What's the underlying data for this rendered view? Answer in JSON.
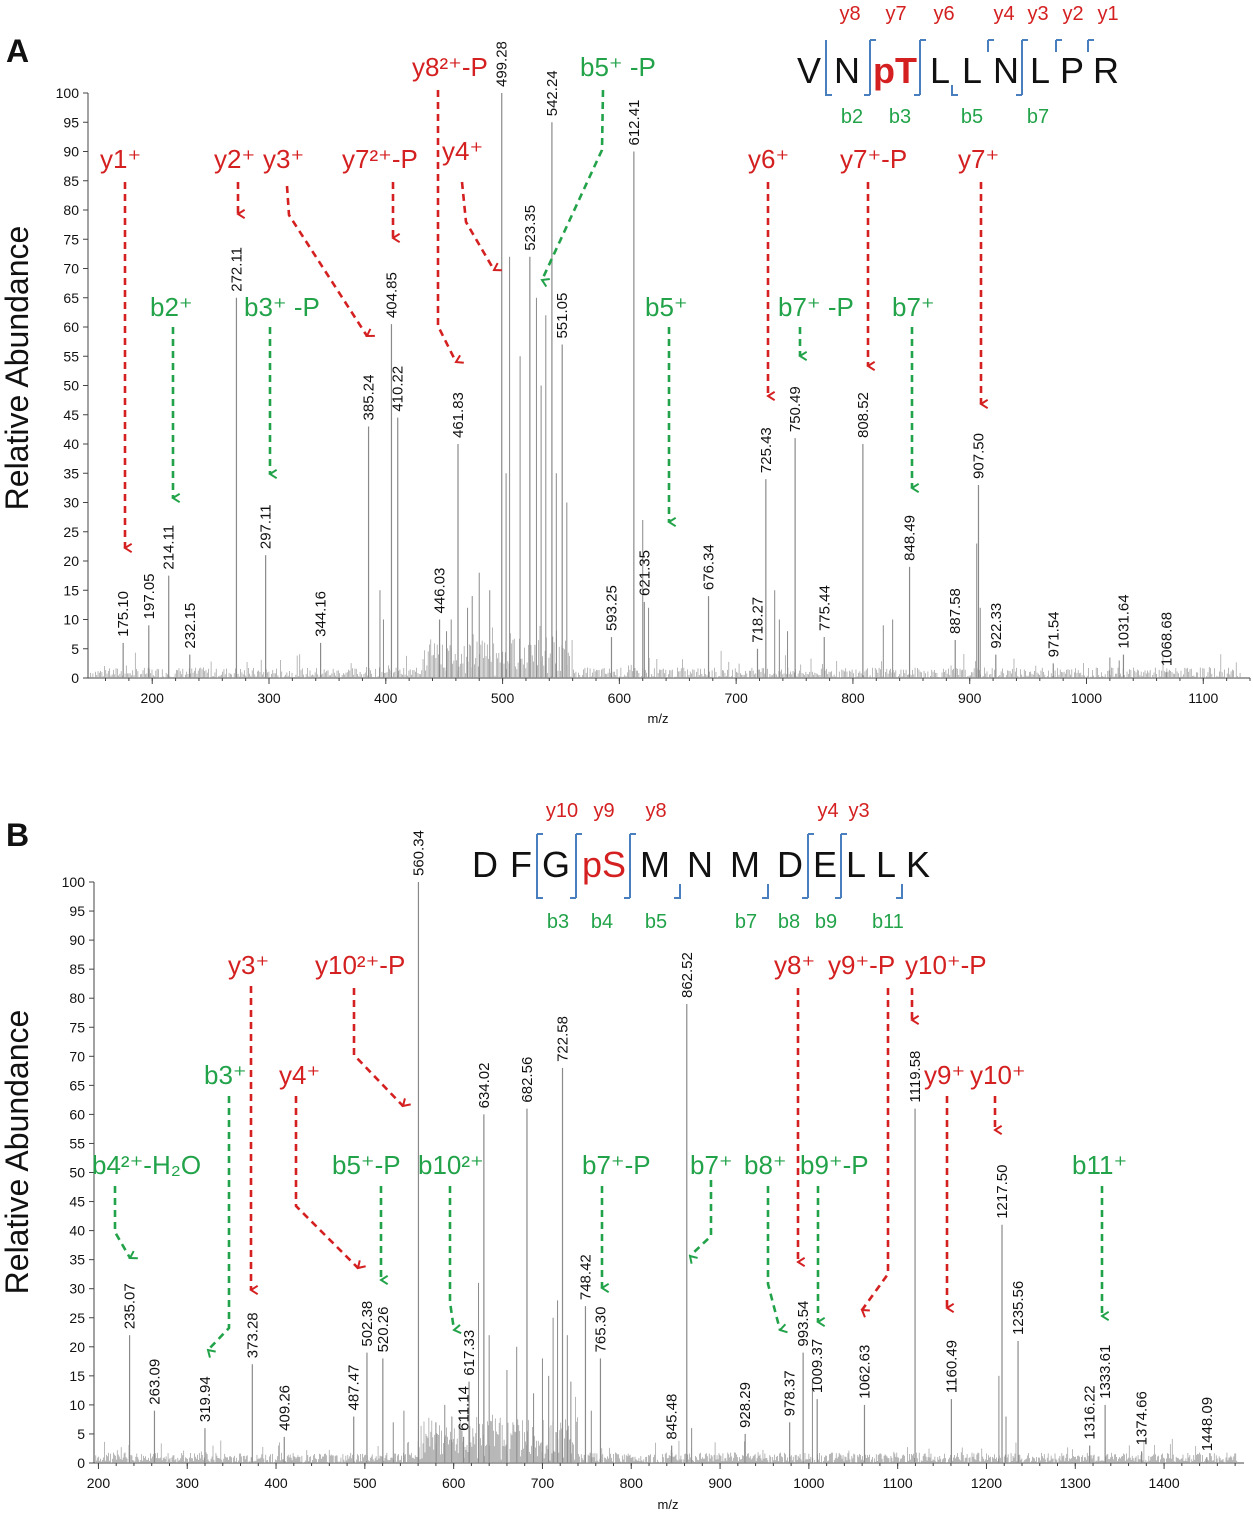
{
  "colors": {
    "red": "#d42020",
    "green": "#22a34a",
    "blue": "#4a7fbf",
    "peak": "#8a8a8a",
    "axis": "#444444",
    "text": "#111111"
  },
  "chart_data": [
    {
      "panel": "A",
      "type": "bar",
      "title": "",
      "xlabel": "m/z",
      "ylabel": "Relative Abundance",
      "xlim": [
        145,
        1140
      ],
      "ylim": [
        0,
        100
      ],
      "xticks": [
        200,
        300,
        400,
        500,
        600,
        700,
        800,
        900,
        1000,
        1100
      ],
      "yticks": [
        0,
        5,
        10,
        15,
        20,
        25,
        30,
        35,
        40,
        45,
        50,
        55,
        60,
        65,
        70,
        75,
        80,
        85,
        90,
        95,
        100
      ],
      "peaks": [
        {
          "mz": 175.1,
          "y": 6,
          "label": "175.10"
        },
        {
          "mz": 197.05,
          "y": 9,
          "label": "197.05"
        },
        {
          "mz": 214.11,
          "y": 17.5,
          "label": "214.11"
        },
        {
          "mz": 232.15,
          "y": 4,
          "label": "232.15"
        },
        {
          "mz": 272.11,
          "y": 65,
          "label": "272.11"
        },
        {
          "mz": 297.11,
          "y": 21,
          "label": "297.11"
        },
        {
          "mz": 344.16,
          "y": 6,
          "label": "344.16"
        },
        {
          "mz": 385.24,
          "y": 43,
          "label": "385.24"
        },
        {
          "mz": 404.85,
          "y": 60.5,
          "label": "404.85"
        },
        {
          "mz": 410.22,
          "y": 44.5,
          "label": "410.22"
        },
        {
          "mz": 446.03,
          "y": 10,
          "label": "446.03"
        },
        {
          "mz": 461.83,
          "y": 40,
          "label": "461.83"
        },
        {
          "mz": 499.28,
          "y": 100,
          "label": "499.28"
        },
        {
          "mz": 523.35,
          "y": 72,
          "label": "523.35"
        },
        {
          "mz": 542.24,
          "y": 95,
          "label": "542.24"
        },
        {
          "mz": 551.05,
          "y": 57,
          "label": "551.05"
        },
        {
          "mz": 593.25,
          "y": 7,
          "label": "593.25"
        },
        {
          "mz": 612.41,
          "y": 90,
          "label": "612.41"
        },
        {
          "mz": 621.35,
          "y": 13,
          "label": "621.35"
        },
        {
          "mz": 676.34,
          "y": 14,
          "label": "676.34"
        },
        {
          "mz": 718.27,
          "y": 5,
          "label": "718.27"
        },
        {
          "mz": 725.43,
          "y": 34,
          "label": "725.43"
        },
        {
          "mz": 750.49,
          "y": 41,
          "label": "750.49"
        },
        {
          "mz": 775.44,
          "y": 7,
          "label": "775.44"
        },
        {
          "mz": 808.52,
          "y": 40,
          "label": "808.52"
        },
        {
          "mz": 848.49,
          "y": 19,
          "label": "848.49"
        },
        {
          "mz": 887.58,
          "y": 6.5,
          "label": "887.58"
        },
        {
          "mz": 907.5,
          "y": 33,
          "label": "907.50"
        },
        {
          "mz": 922.33,
          "y": 4,
          "label": "922.33"
        },
        {
          "mz": 971.54,
          "y": 2.5,
          "label": "971.54"
        },
        {
          "mz": 1031.64,
          "y": 4,
          "label": "1031.64"
        },
        {
          "mz": 1068.68,
          "y": 1,
          "label": "1068.68"
        }
      ],
      "minor_peaks": [
        {
          "mz": 515,
          "y": 55
        },
        {
          "mz": 529,
          "y": 65
        },
        {
          "mz": 533,
          "y": 50
        },
        {
          "mz": 537,
          "y": 62
        },
        {
          "mz": 546,
          "y": 35
        },
        {
          "mz": 555,
          "y": 30
        },
        {
          "mz": 503,
          "y": 35
        },
        {
          "mz": 506,
          "y": 72
        },
        {
          "mz": 489,
          "y": 15
        },
        {
          "mz": 480,
          "y": 18
        },
        {
          "mz": 474,
          "y": 14
        },
        {
          "mz": 470,
          "y": 12
        },
        {
          "mz": 456,
          "y": 10
        },
        {
          "mz": 452,
          "y": 8
        },
        {
          "mz": 395,
          "y": 15
        },
        {
          "mz": 398,
          "y": 10
        },
        {
          "mz": 620,
          "y": 27
        },
        {
          "mz": 625,
          "y": 12
        },
        {
          "mz": 733,
          "y": 15
        },
        {
          "mz": 737,
          "y": 10
        },
        {
          "mz": 744,
          "y": 8
        },
        {
          "mz": 826,
          "y": 9
        },
        {
          "mz": 834,
          "y": 10
        },
        {
          "mz": 906,
          "y": 23
        },
        {
          "mz": 909,
          "y": 12
        },
        {
          "mz": 1028,
          "y": 3
        },
        {
          "mz": 1020,
          "y": 3.5
        }
      ],
      "sequence": {
        "residues": [
          "V",
          "N",
          "pT",
          "L",
          "L",
          "N",
          "L",
          "P",
          "R"
        ],
        "y_ions": [
          "y8",
          "y7",
          "y6",
          "y4",
          "y3",
          "y2",
          "y1"
        ],
        "b_ions": [
          "b2",
          "b3",
          "b5",
          "b7"
        ]
      },
      "annotations": {
        "y": [
          "y1⁺",
          "y2⁺",
          "y3⁺",
          "y7²⁺-P",
          "y8²⁺-P",
          "y4⁺",
          "y6⁺",
          "y7⁺-P",
          "y7⁺"
        ],
        "b": [
          "b2⁺",
          "b3⁺ -P",
          "b5⁺ -P",
          "b5⁺",
          "b7⁺ -P",
          "b7⁺"
        ]
      }
    },
    {
      "panel": "B",
      "type": "bar",
      "title": "",
      "xlabel": "m/z",
      "ylabel": "Relative Abundance",
      "xlim": [
        195,
        1490
      ],
      "ylim": [
        0,
        100
      ],
      "xticks": [
        200,
        300,
        400,
        500,
        600,
        700,
        800,
        900,
        1000,
        1100,
        1200,
        1300,
        1400
      ],
      "yticks": [
        0,
        5,
        10,
        15,
        20,
        25,
        30,
        35,
        40,
        45,
        50,
        55,
        60,
        65,
        70,
        75,
        80,
        85,
        90,
        95,
        100
      ],
      "peaks": [
        {
          "mz": 235.07,
          "y": 22,
          "label": "235.07"
        },
        {
          "mz": 263.09,
          "y": 9,
          "label": "263.09"
        },
        {
          "mz": 319.94,
          "y": 6,
          "label": "319.94"
        },
        {
          "mz": 373.28,
          "y": 17,
          "label": "373.28"
        },
        {
          "mz": 409.26,
          "y": 4.5,
          "label": "409.26"
        },
        {
          "mz": 487.47,
          "y": 8,
          "label": "487.47"
        },
        {
          "mz": 502.38,
          "y": 19,
          "label": "502.38"
        },
        {
          "mz": 520.26,
          "y": 18,
          "label": "520.26"
        },
        {
          "mz": 560.34,
          "y": 100,
          "label": "560.34"
        },
        {
          "mz": 611.14,
          "y": 4.5,
          "label": "611.14"
        },
        {
          "mz": 617.33,
          "y": 14,
          "label": "617.33"
        },
        {
          "mz": 634.02,
          "y": 60,
          "label": "634.02"
        },
        {
          "mz": 682.56,
          "y": 61,
          "label": "682.56"
        },
        {
          "mz": 722.58,
          "y": 68,
          "label": "722.58"
        },
        {
          "mz": 748.42,
          "y": 27,
          "label": "748.42"
        },
        {
          "mz": 765.3,
          "y": 18,
          "label": "765.30"
        },
        {
          "mz": 845.48,
          "y": 3,
          "label": "845.48"
        },
        {
          "mz": 862.52,
          "y": 79,
          "label": "862.52"
        },
        {
          "mz": 928.29,
          "y": 5,
          "label": "928.29"
        },
        {
          "mz": 978.37,
          "y": 7,
          "label": "978.37"
        },
        {
          "mz": 993.54,
          "y": 19,
          "label": "993.54"
        },
        {
          "mz": 1009.37,
          "y": 11,
          "label": "1009.37"
        },
        {
          "mz": 1062.63,
          "y": 10,
          "label": "1062.63"
        },
        {
          "mz": 1119.58,
          "y": 61,
          "label": "1119.58"
        },
        {
          "mz": 1160.49,
          "y": 11,
          "label": "1160.49"
        },
        {
          "mz": 1217.5,
          "y": 41,
          "label": "1217.50"
        },
        {
          "mz": 1235.56,
          "y": 21,
          "label": "1235.56"
        },
        {
          "mz": 1316.22,
          "y": 3,
          "label": "1316.22"
        },
        {
          "mz": 1333.61,
          "y": 10,
          "label": "1333.61"
        },
        {
          "mz": 1374.66,
          "y": 2,
          "label": "1374.66"
        },
        {
          "mz": 1448.09,
          "y": 1,
          "label": "1448.09"
        }
      ],
      "minor_peaks": [
        {
          "mz": 628,
          "y": 31
        },
        {
          "mz": 640,
          "y": 22
        },
        {
          "mz": 660,
          "y": 16
        },
        {
          "mz": 671,
          "y": 20
        },
        {
          "mz": 690,
          "y": 12
        },
        {
          "mz": 700,
          "y": 18
        },
        {
          "mz": 707,
          "y": 15
        },
        {
          "mz": 712,
          "y": 25
        },
        {
          "mz": 717,
          "y": 28
        },
        {
          "mz": 728,
          "y": 22
        },
        {
          "mz": 732,
          "y": 14
        },
        {
          "mz": 598,
          "y": 8
        },
        {
          "mz": 590,
          "y": 10
        },
        {
          "mz": 580,
          "y": 7
        },
        {
          "mz": 544,
          "y": 9
        },
        {
          "mz": 532,
          "y": 7
        },
        {
          "mz": 755,
          "y": 9
        },
        {
          "mz": 868,
          "y": 6
        },
        {
          "mz": 1004,
          "y": 14
        },
        {
          "mz": 1214,
          "y": 15
        },
        {
          "mz": 1222,
          "y": 8
        }
      ],
      "sequence": {
        "residues": [
          "D",
          "F",
          "G",
          "pS",
          "M",
          "N",
          "M",
          "D",
          "E",
          "L",
          "L",
          "K"
        ],
        "y_ions": [
          "y10",
          "y9",
          "y8",
          "y4",
          "y3"
        ],
        "b_ions": [
          "b3",
          "b4",
          "b5",
          "b7",
          "b8",
          "b9",
          "b11"
        ]
      },
      "annotations": {
        "y": [
          "y3⁺",
          "y10²⁺-P",
          "y4⁺",
          "y8⁺",
          "y9⁺-P",
          "y10⁺-P",
          "y9⁺",
          "y10⁺"
        ],
        "b": [
          "b3⁺",
          "b4²⁺-H₂O",
          "b5⁺-P",
          "b10²⁺",
          "b7⁺-P",
          "b7⁺",
          "b8⁺",
          "b9⁺-P",
          "b11⁺"
        ]
      }
    }
  ]
}
